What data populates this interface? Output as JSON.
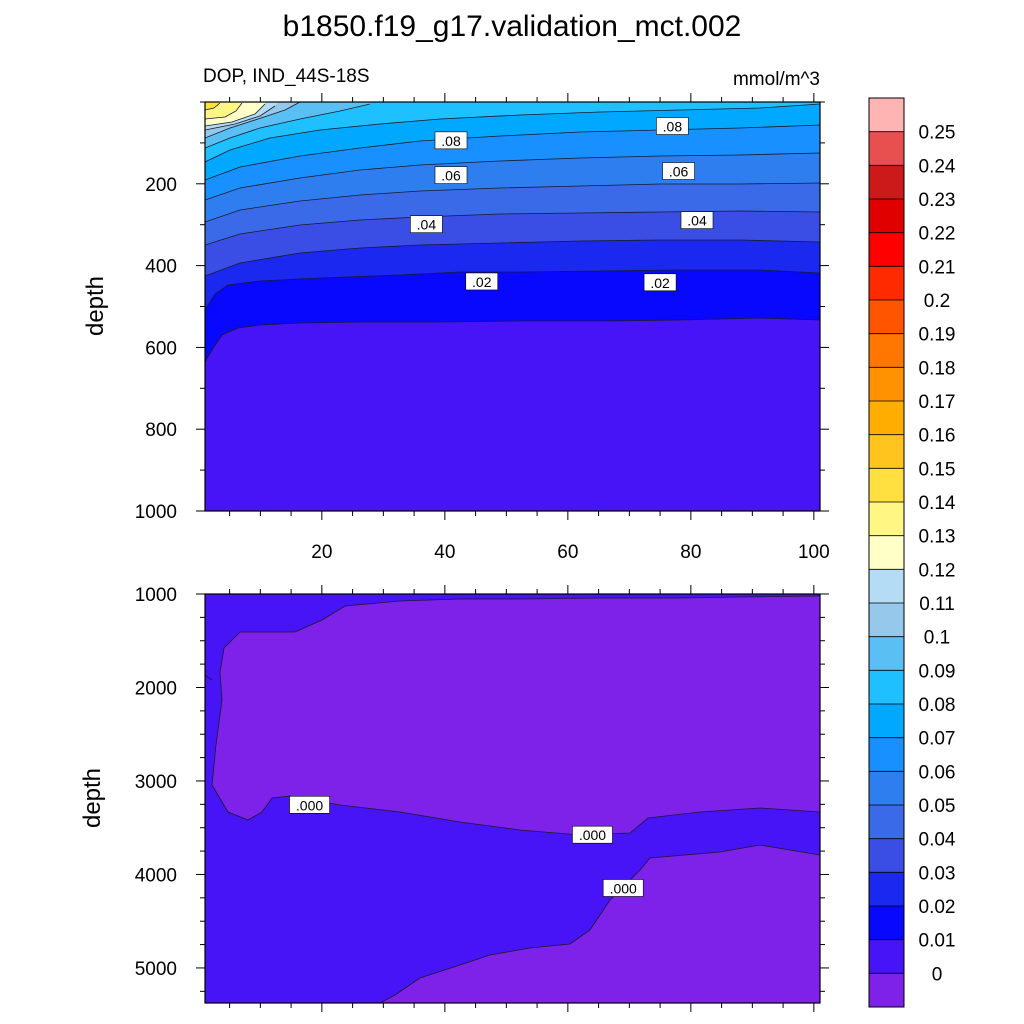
{
  "title": "b1850.f19_g17.validation_mct.002",
  "panels": {
    "upper": {
      "left_label": "DOP, IND_44S-18S",
      "right_label": "mmol/m^3"
    }
  },
  "chart_data": [
    {
      "type": "contour",
      "ylabel": "depth",
      "xlim": [
        1,
        101
      ],
      "ylim": [
        1000,
        0
      ],
      "x_ticks": [
        "20",
        "40",
        "60",
        "80",
        "100"
      ],
      "y_ticks": [
        "200",
        "400",
        "600",
        "800",
        "1000"
      ],
      "contour_labels": [
        {
          "text": ".08",
          "x": 41,
          "y": 95
        },
        {
          "text": ".08",
          "x": 77,
          "y": 60
        },
        {
          "text": ".06",
          "x": 41,
          "y": 180
        },
        {
          "text": ".06",
          "x": 78,
          "y": 170
        },
        {
          "text": ".04",
          "x": 37,
          "y": 300
        },
        {
          "text": ".04",
          "x": 81,
          "y": 290
        },
        {
          "text": ".02",
          "x": 46,
          "y": 440
        },
        {
          "text": ".02",
          "x": 75,
          "y": 442
        }
      ]
    },
    {
      "type": "contour",
      "ylabel": "depth",
      "xlim": [
        1,
        101
      ],
      "ylim": [
        5375,
        1000
      ],
      "y_ticks": [
        "1000",
        "2000",
        "3000",
        "4000",
        "5000"
      ],
      "contour_labels": [
        {
          "text": ".000",
          "x": 18,
          "y": 3260
        },
        {
          "text": ".000",
          "x": 64,
          "y": 3580
        },
        {
          "text": ".000",
          "x": 69,
          "y": 4150
        }
      ]
    }
  ],
  "colorbar": {
    "labels": [
      "0.25",
      "0.24",
      "0.23",
      "0.22",
      "0.21",
      "0.2",
      "0.19",
      "0.18",
      "0.17",
      "0.16",
      "0.15",
      "0.14",
      "0.13",
      "0.12",
      "0.11",
      "0.1",
      "0.09",
      "0.08",
      "0.07",
      "0.06",
      "0.05",
      "0.04",
      "0.03",
      "0.02",
      "0.01",
      "0"
    ],
    "colors": [
      "#ffb4b4",
      "#e85050",
      "#cc1a1a",
      "#e00000",
      "#ff0000",
      "#ff2a00",
      "#ff5500",
      "#ff7700",
      "#ff9200",
      "#ffae00",
      "#ffc41e",
      "#ffe040",
      "#fff684",
      "#ffffc8",
      "#b4dcf4",
      "#96c8ec",
      "#5ac0f4",
      "#1ec0ff",
      "#00a8ff",
      "#1890ff",
      "#2f7ef0",
      "#3a6ae8",
      "#3a4ee6",
      "#1a28f0",
      "#0808ff",
      "#4614f6",
      "#7e22ea"
    ]
  }
}
